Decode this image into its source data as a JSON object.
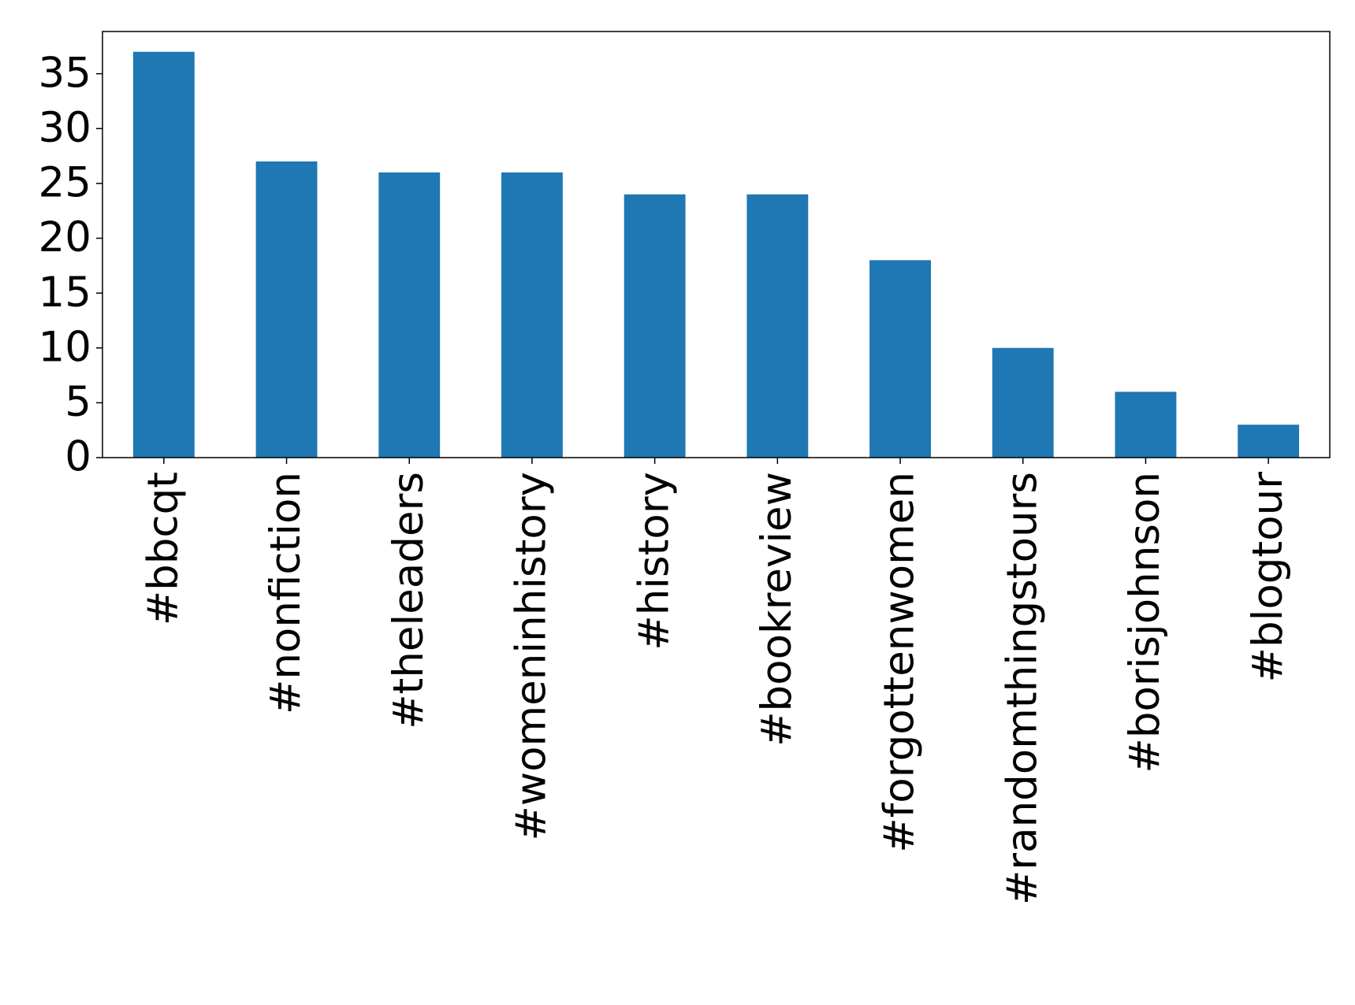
{
  "chart_data": {
    "type": "bar",
    "categories": [
      "#bbcqt",
      "#nonfiction",
      "#theleaders",
      "#womeninhistory",
      "#history",
      "#bookreview",
      "#forgottenwomen",
      "#randomthingstours",
      "#borisjohnson",
      "#blogtour"
    ],
    "values": [
      37,
      27,
      26,
      26,
      24,
      24,
      18,
      10,
      6,
      3
    ],
    "color": "#1f77b4",
    "ylim": [
      0,
      38.85
    ],
    "yticks": [
      0,
      5,
      10,
      15,
      20,
      25,
      30,
      35
    ],
    "grid": false
  }
}
